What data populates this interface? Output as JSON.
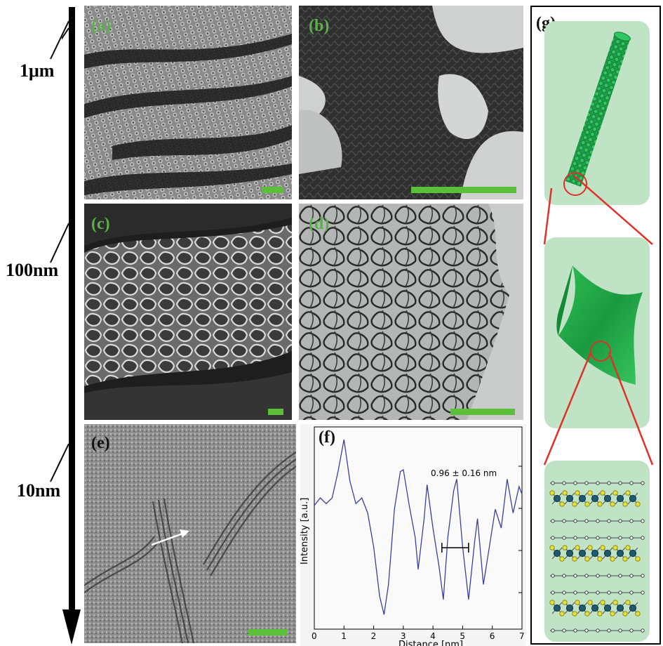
{
  "scale_axis": {
    "labels": [
      "1μm",
      "100nm",
      "10nm"
    ]
  },
  "panels": {
    "a": {
      "label": "(a)"
    },
    "b": {
      "label": "(b)"
    },
    "c": {
      "label": "(c)"
    },
    "d": {
      "label": "(d)"
    },
    "e": {
      "label": "(e)"
    },
    "f": {
      "label": "(f)"
    },
    "g": {
      "label": "(g)"
    }
  },
  "colors": {
    "green_label": "#5cb04a",
    "scalebar": "#5cbf3a",
    "schematic_bg": "#bfe3c4",
    "connector": "#e0302a",
    "profile_line": "#3b3f9e"
  },
  "chart_data": {
    "type": "line",
    "title": "",
    "xlabel": "Distance [nm]",
    "ylabel": "Intensity [a.u.]",
    "xlim": [
      0,
      7
    ],
    "x_ticks": [
      "0",
      "1",
      "2",
      "3",
      "4",
      "5",
      "6",
      "7"
    ],
    "annotation": "0.96 ± 0.16 nm",
    "annotation_bar_x": [
      4.3,
      5.2
    ],
    "series": [
      {
        "x": [
          0,
          0.2,
          0.4,
          0.6,
          0.8,
          1.0,
          1.2,
          1.4,
          1.6,
          1.8,
          2.0,
          2.2,
          2.35,
          2.5,
          2.7,
          2.9,
          3.0,
          3.2,
          3.4,
          3.5,
          3.7,
          3.8,
          4.0,
          4.2,
          4.35,
          4.5,
          4.7,
          4.8,
          5.0,
          5.2,
          5.4,
          5.5,
          5.7,
          5.9,
          6.1,
          6.3,
          6.5,
          6.7,
          6.9,
          7.0
        ],
        "y": [
          0.62,
          0.66,
          0.63,
          0.66,
          0.8,
          0.97,
          0.75,
          0.63,
          0.66,
          0.58,
          0.4,
          0.14,
          0.04,
          0.2,
          0.6,
          0.8,
          0.81,
          0.62,
          0.45,
          0.28,
          0.55,
          0.73,
          0.5,
          0.3,
          0.12,
          0.45,
          0.7,
          0.76,
          0.4,
          0.12,
          0.42,
          0.55,
          0.2,
          0.4,
          0.6,
          0.5,
          0.76,
          0.58,
          0.72,
          0.68
        ]
      }
    ]
  }
}
